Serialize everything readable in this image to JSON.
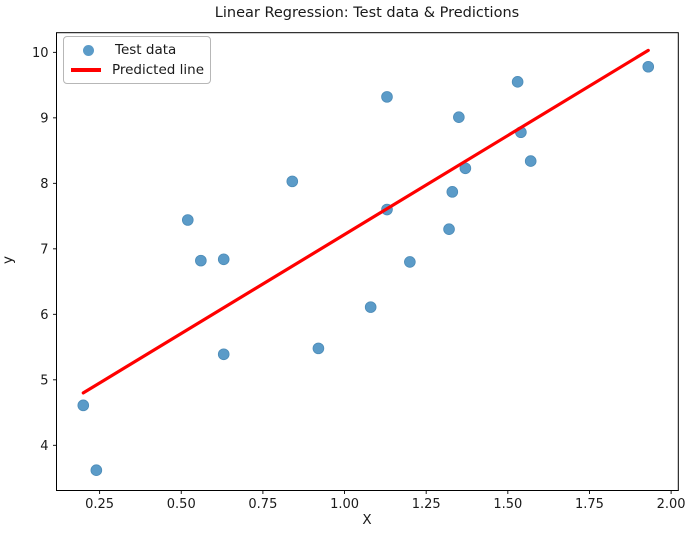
{
  "chart_data": {
    "type": "scatter",
    "title": "Linear Regression: Test data & Predictions",
    "xlabel": "X",
    "ylabel": "y",
    "xlim": [
      0.118,
      2.022
    ],
    "ylim": [
      3.31,
      10.3
    ],
    "grid": false,
    "legend_position": "upper left",
    "x_ticks": {
      "values": [
        0.25,
        0.5,
        0.75,
        1.0,
        1.25,
        1.5,
        1.75,
        2.0
      ],
      "labels": [
        "0.25",
        "0.50",
        "0.75",
        "1.00",
        "1.25",
        "1.50",
        "1.75",
        "2.00"
      ]
    },
    "y_ticks": {
      "values": [
        4,
        5,
        6,
        7,
        8,
        9,
        10
      ],
      "labels": [
        "4",
        "5",
        "6",
        "7",
        "8",
        "9",
        "10"
      ]
    },
    "series": [
      {
        "name": "Test data",
        "type": "scatter",
        "color": "#5b9bc8",
        "edge_color": "#4d8cb8",
        "points": [
          [
            0.2,
            4.61
          ],
          [
            0.24,
            3.62
          ],
          [
            0.52,
            7.44
          ],
          [
            0.56,
            6.82
          ],
          [
            0.63,
            6.84
          ],
          [
            0.63,
            5.39
          ],
          [
            0.84,
            8.03
          ],
          [
            0.92,
            5.48
          ],
          [
            1.08,
            6.11
          ],
          [
            1.13,
            9.32
          ],
          [
            1.13,
            7.6
          ],
          [
            1.2,
            6.8
          ],
          [
            1.32,
            7.3
          ],
          [
            1.33,
            7.87
          ],
          [
            1.35,
            9.01
          ],
          [
            1.37,
            8.23
          ],
          [
            1.53,
            9.55
          ],
          [
            1.54,
            8.78
          ],
          [
            1.57,
            8.34
          ],
          [
            1.93,
            9.78
          ]
        ]
      },
      {
        "name": "Predicted line",
        "type": "line",
        "color": "#ff0000",
        "endpoints": [
          [
            0.2,
            4.8
          ],
          [
            1.93,
            10.03
          ]
        ]
      }
    ],
    "legend": [
      {
        "label": "Test data"
      },
      {
        "label": "Predicted line"
      }
    ],
    "colors": {
      "spine": "#000000",
      "text": "#1a1a1a"
    }
  }
}
